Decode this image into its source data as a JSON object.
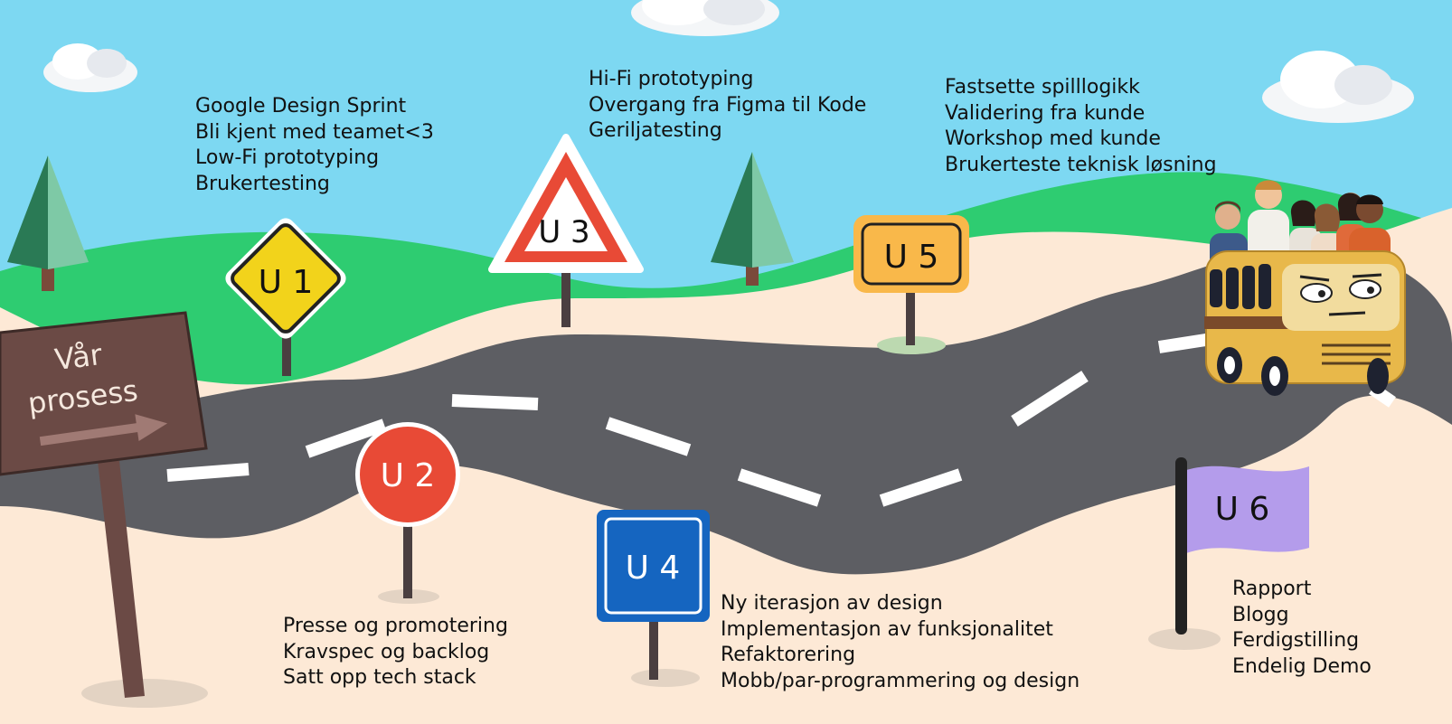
{
  "sign_title": {
    "line1": "Vår",
    "line2": "prosess"
  },
  "stages": [
    {
      "label": "U 1",
      "sign": "yellow-diamond",
      "items": [
        "Google Design Sprint",
        "Bli kjent med teamet<3",
        "Low-Fi prototyping",
        "Brukertesting"
      ]
    },
    {
      "label": "U 2",
      "sign": "red-circle",
      "items": [
        "Presse og promotering",
        "Kravspec og backlog",
        "Satt opp tech stack"
      ]
    },
    {
      "label": "U 3",
      "sign": "warning-triangle",
      "items": [
        "Hi-Fi prototyping",
        "Overgang fra Figma til Kode",
        "Geriljatesting"
      ]
    },
    {
      "label": "U 4",
      "sign": "blue-square",
      "items": [
        "Ny iterasjon av design",
        "Implementasjon av funksjonalitet",
        "Refaktorering",
        "Mobb/par-programmering og design"
      ]
    },
    {
      "label": "U 5",
      "sign": "orange-rounded-rect",
      "items": [
        "Fastsette spilllogikk",
        "Validering fra kunde",
        "Workshop med kunde",
        "Brukerteste teknisk løsning"
      ]
    },
    {
      "label": "U 6",
      "sign": "purple-flag",
      "items": [
        "Rapport",
        "Blogg",
        "Ferdigstilling",
        "Endelig Demo"
      ]
    }
  ],
  "colors": {
    "sky": "#7dd8f2",
    "hills": "#2ecc71",
    "sand": "#fde9d6",
    "road": "#5d5e63",
    "lane": "#ffffff",
    "wood": "#6b4a45",
    "sign_yellow": "#f2d31b",
    "sign_red": "#e84a36",
    "sign_blue": "#1565c0",
    "sign_orange": "#f9b84a",
    "flag_purple": "#b49ceb",
    "bus": "#e8b84a"
  }
}
